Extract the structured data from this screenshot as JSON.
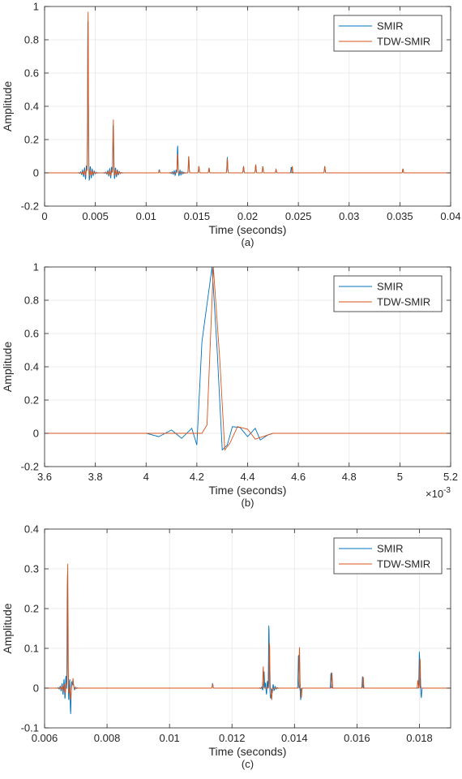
{
  "chart_data": [
    {
      "type": "line",
      "caption": "(a)",
      "xlabel": "Time (seconds)",
      "ylabel": "Amplitude",
      "xlim": [
        0,
        0.04
      ],
      "ylim": [
        -0.2,
        1
      ],
      "xticks": [
        0,
        0.005,
        0.01,
        0.015,
        0.02,
        0.025,
        0.03,
        0.035,
        0.04
      ],
      "xtick_labels": [
        "0",
        "0.005",
        "0.01",
        "0.015",
        "0.02",
        "0.025",
        "0.03",
        "0.035",
        "0.04"
      ],
      "yticks": [
        -0.2,
        0,
        0.2,
        0.4,
        0.6,
        0.8,
        1
      ],
      "ytick_labels": [
        "-0.2",
        "0",
        "0.2",
        "0.4",
        "0.6",
        "0.8",
        "1"
      ],
      "x_exponent": "",
      "grid": true,
      "legend_position": "top-right",
      "series": [
        {
          "name": "SMIR",
          "color": "#0072BD",
          "peaks": [
            {
              "x": 0.00427,
              "y": 1.0,
              "ring": 0.05
            },
            {
              "x": 0.00675,
              "y": 0.3,
              "ring": 0.04
            },
            {
              "x": 0.0113,
              "y": 0.02
            },
            {
              "x": 0.0131,
              "y": 0.17,
              "ring": 0.02
            },
            {
              "x": 0.0142,
              "y": 0.1
            },
            {
              "x": 0.0152,
              "y": 0.04
            },
            {
              "x": 0.0162,
              "y": 0.03
            },
            {
              "x": 0.018,
              "y": 0.095
            },
            {
              "x": 0.0196,
              "y": 0.04
            },
            {
              "x": 0.0208,
              "y": 0.05
            },
            {
              "x": 0.0215,
              "y": 0.04
            },
            {
              "x": 0.0228,
              "y": 0.02
            },
            {
              "x": 0.0243,
              "y": 0.035
            },
            {
              "x": 0.0276,
              "y": 0.04
            },
            {
              "x": 0.0353,
              "y": 0.025
            }
          ]
        },
        {
          "name": "TDW-SMIR",
          "color": "#D95319",
          "peaks": [
            {
              "x": 0.00428,
              "y": 0.98,
              "ring": 0.02
            },
            {
              "x": 0.00677,
              "y": 0.32,
              "ring": 0.02
            },
            {
              "x": 0.0113,
              "y": 0.015
            },
            {
              "x": 0.0131,
              "y": 0.12
            },
            {
              "x": 0.0142,
              "y": 0.1
            },
            {
              "x": 0.0152,
              "y": 0.04
            },
            {
              "x": 0.0162,
              "y": 0.03
            },
            {
              "x": 0.018,
              "y": 0.085
            },
            {
              "x": 0.0196,
              "y": 0.04
            },
            {
              "x": 0.0208,
              "y": 0.05
            },
            {
              "x": 0.0215,
              "y": 0.04
            },
            {
              "x": 0.0228,
              "y": 0.02
            },
            {
              "x": 0.0244,
              "y": 0.04
            },
            {
              "x": 0.0276,
              "y": 0.04
            },
            {
              "x": 0.0353,
              "y": 0.025
            }
          ]
        }
      ]
    },
    {
      "type": "line",
      "caption": "(b)",
      "xlabel": "Time (seconds)",
      "ylabel": "Amplitude",
      "xlim": [
        3.6,
        5.2
      ],
      "ylim": [
        -0.2,
        1
      ],
      "xticks": [
        3.6,
        3.8,
        4,
        4.2,
        4.4,
        4.6,
        4.8,
        5,
        5.2
      ],
      "xtick_labels": [
        "3.6",
        "3.8",
        "4",
        "4.2",
        "4.4",
        "4.6",
        "4.8",
        "5",
        "5.2"
      ],
      "yticks": [
        -0.2,
        0,
        0.2,
        0.4,
        0.6,
        0.8,
        1
      ],
      "ytick_labels": [
        "-0.2",
        "0",
        "0.2",
        "0.4",
        "0.6",
        "0.8",
        "1"
      ],
      "x_exponent": "×10",
      "x_exponent_power": "-3",
      "grid": true,
      "legend_position": "top-right",
      "series": [
        {
          "name": "SMIR",
          "color": "#0072BD",
          "x": [
            3.6,
            3.7,
            3.8,
            3.9,
            4.0,
            4.05,
            4.1,
            4.14,
            4.18,
            4.2,
            4.22,
            4.235,
            4.26,
            4.28,
            4.3,
            4.32,
            4.34,
            4.37,
            4.4,
            4.43,
            4.45,
            4.48,
            4.5,
            4.55,
            4.6,
            4.7,
            4.8,
            4.9,
            5.0,
            5.1,
            5.2
          ],
          "y": [
            0,
            0,
            0,
            0,
            0,
            -0.02,
            0.02,
            -0.03,
            0.03,
            -0.07,
            0.55,
            0.72,
            1.0,
            0.5,
            -0.1,
            -0.07,
            0.04,
            0.035,
            -0.02,
            0.03,
            -0.04,
            -0.01,
            0,
            0,
            0,
            0,
            0,
            0,
            0,
            0,
            0
          ]
        },
        {
          "name": "TDW-SMIR",
          "color": "#D95319",
          "x": [
            3.6,
            3.7,
            3.8,
            3.9,
            4.0,
            4.1,
            4.2,
            4.22,
            4.24,
            4.265,
            4.29,
            4.31,
            4.33,
            4.36,
            4.4,
            4.43,
            4.46,
            4.5,
            4.6,
            4.7,
            4.8,
            4.9,
            5.0,
            5.1,
            5.2
          ],
          "y": [
            0,
            0,
            0,
            0,
            0,
            0,
            0,
            0,
            0.05,
            1.0,
            0.45,
            -0.1,
            -0.06,
            0.04,
            0.025,
            -0.035,
            -0.02,
            0,
            0,
            0,
            0,
            0,
            0,
            0,
            0
          ]
        }
      ]
    },
    {
      "type": "line",
      "caption": "(c)",
      "xlabel": "Time (seconds)",
      "ylabel": "Amplitude",
      "xlim": [
        0.006,
        0.019
      ],
      "ylim": [
        -0.1,
        0.4
      ],
      "xticks": [
        0.006,
        0.008,
        0.01,
        0.012,
        0.014,
        0.016,
        0.018
      ],
      "xtick_labels": [
        "0.006",
        "0.008",
        "0.01",
        "0.012",
        "0.014",
        "0.016",
        "0.018"
      ],
      "yticks": [
        -0.1,
        0,
        0.1,
        0.2,
        0.3,
        0.4
      ],
      "ytick_labels": [
        "-0.1",
        "0",
        "0.1",
        "0.2",
        "0.3",
        "0.4"
      ],
      "x_exponent": "",
      "grid": true,
      "legend_position": "top-right",
      "series": [
        {
          "name": "SMIR",
          "color": "#0072BD",
          "peaks": [
            {
              "x": 0.00673,
              "y": 0.29,
              "ring": 0.035
            },
            {
              "x": 0.00683,
              "y": -0.05
            },
            {
              "x": 0.0069,
              "y": 0.025
            },
            {
              "x": 0.01138,
              "y": 0.012
            },
            {
              "x": 0.01303,
              "y": 0.045
            },
            {
              "x": 0.01318,
              "y": 0.165,
              "ring": 0.02
            },
            {
              "x": 0.01325,
              "y": -0.035
            },
            {
              "x": 0.01413,
              "y": 0.09
            },
            {
              "x": 0.0142,
              "y": -0.03
            },
            {
              "x": 0.01517,
              "y": 0.04
            },
            {
              "x": 0.01618,
              "y": 0.03
            },
            {
              "x": 0.018,
              "y": 0.095
            },
            {
              "x": 0.01806,
              "y": -0.025
            }
          ]
        },
        {
          "name": "TDW-SMIR",
          "color": "#D95319",
          "peaks": [
            {
              "x": 0.00674,
              "y": 0.32,
              "ring": 0.015
            },
            {
              "x": 0.00683,
              "y": -0.03
            },
            {
              "x": 0.00691,
              "y": 0.03
            },
            {
              "x": 0.01138,
              "y": 0.01
            },
            {
              "x": 0.013,
              "y": 0.055
            },
            {
              "x": 0.0132,
              "y": 0.12
            },
            {
              "x": 0.01327,
              "y": -0.03
            },
            {
              "x": 0.01416,
              "y": 0.105
            },
            {
              "x": 0.01422,
              "y": -0.025
            },
            {
              "x": 0.0152,
              "y": 0.04
            },
            {
              "x": 0.0162,
              "y": 0.03
            },
            {
              "x": 0.01802,
              "y": 0.08
            },
            {
              "x": 0.01795,
              "y": 0.02
            }
          ]
        }
      ]
    }
  ]
}
